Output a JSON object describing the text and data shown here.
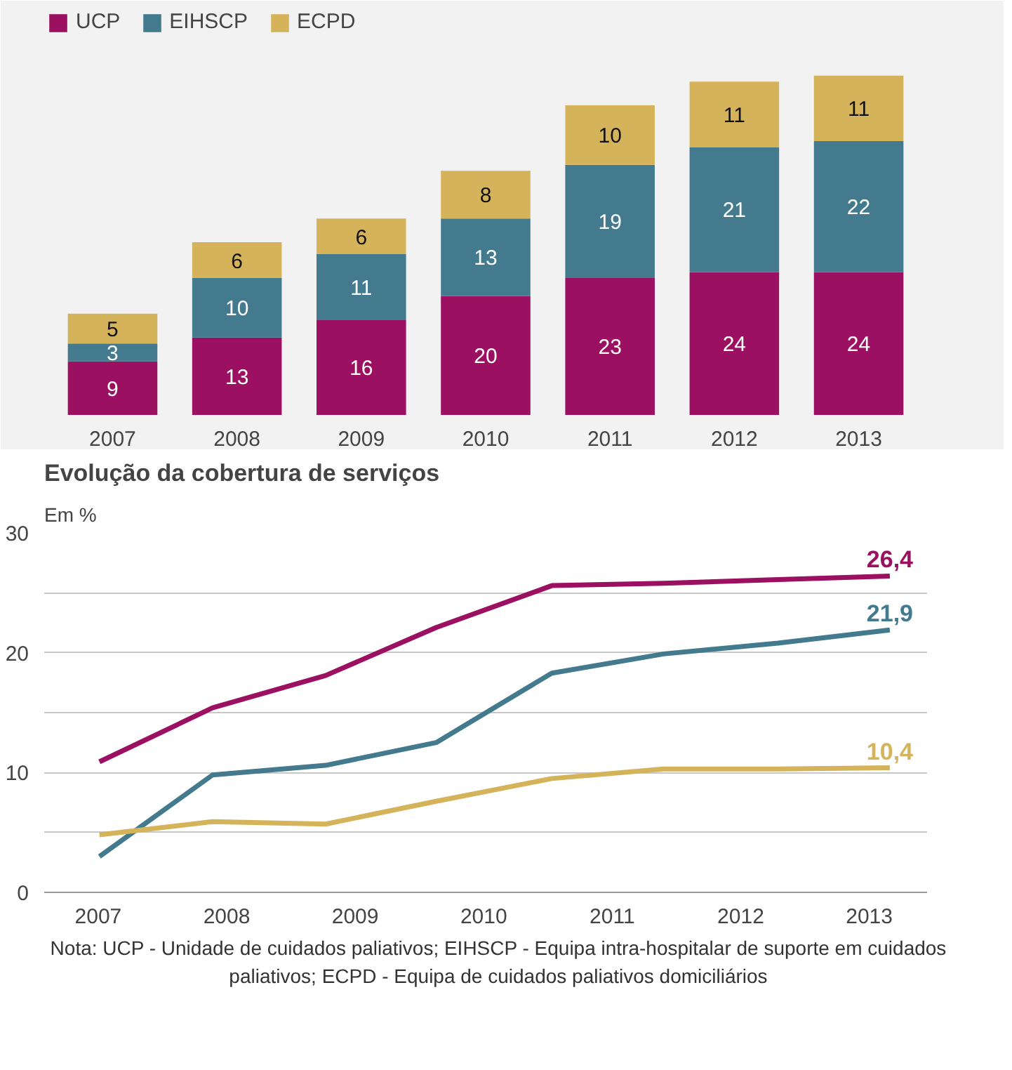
{
  "chart_data": [
    {
      "type": "bar",
      "stacked": true,
      "data_labels": true,
      "legend": "top left",
      "categories": [
        "2007",
        "2008",
        "2009",
        "2010",
        "2011",
        "2012",
        "2013"
      ],
      "series": [
        {
          "name": "UCP",
          "color": "#9b1060",
          "values": [
            9,
            13,
            16,
            20,
            23,
            24,
            24
          ]
        },
        {
          "name": "EIHSCP",
          "color": "#437a8e",
          "values": [
            3,
            10,
            11,
            13,
            19,
            21,
            22
          ]
        },
        {
          "name": "ECPD",
          "color": "#d4b35a",
          "values": [
            5,
            6,
            6,
            8,
            10,
            11,
            11
          ]
        }
      ]
    },
    {
      "type": "line",
      "title": "Evolução da cobertura de serviços",
      "subtitle": "Em %",
      "grid": "y",
      "xlim": [
        2006.58,
        2013.45
      ],
      "xticks": [
        2007,
        2008,
        2009,
        2010,
        2011,
        2012,
        2013
      ],
      "ylim": [
        0,
        30
      ],
      "yticks": [
        0,
        {
          "value": 5,
          "label": null
        },
        10,
        {
          "value": 15,
          "label": null
        },
        20,
        {
          "value": 25,
          "label": null
        },
        30
      ],
      "x": [
        2007.01,
        2007.89,
        2008.77,
        2009.63,
        2010.53,
        2011.4,
        2012.29,
        2013.16
      ],
      "series": [
        {
          "color": "#9b1060",
          "values": [
            10.9,
            15.4,
            18.1,
            22.1,
            25.6,
            25.8,
            26.1,
            26.4
          ],
          "value_labels": [
            null,
            null,
            null,
            null,
            null,
            null,
            null,
            "26,4"
          ]
        },
        {
          "color": "#437a8e",
          "values": [
            3.0,
            9.8,
            10.6,
            12.5,
            18.3,
            19.9,
            20.8,
            21.9
          ],
          "value_labels": [
            null,
            null,
            null,
            null,
            null,
            null,
            null,
            "21,9"
          ]
        },
        {
          "color": "#d4b35a",
          "values": [
            4.8,
            5.9,
            5.7,
            7.6,
            9.5,
            10.3,
            10.3,
            10.4
          ],
          "value_labels": [
            null,
            null,
            null,
            null,
            null,
            null,
            null,
            "10,4"
          ]
        }
      ],
      "annotations": [
        "Nota: UCP - Unidade de cuidados paliativos; EIHSCP - Equipa intra-hospitalar de suporte em cuidados paliativos; ECPD - Equipa de cuidados paliativos domiciliários"
      ]
    }
  ]
}
